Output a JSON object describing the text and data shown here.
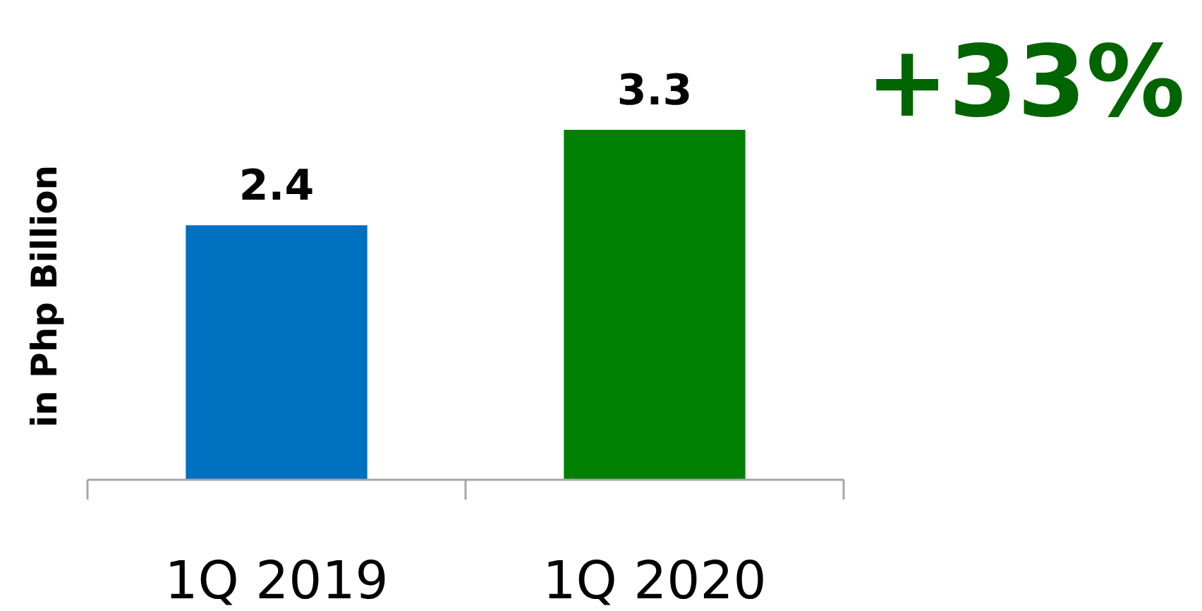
{
  "chart_data": {
    "type": "bar",
    "ylabel": "in Php Billion",
    "categories": [
      "1Q 2019",
      "1Q 2020"
    ],
    "values": [
      2.4,
      3.3
    ],
    "colors": [
      "#0070c0",
      "#008000"
    ],
    "data_labels": true,
    "annotations": [
      "+33%"
    ]
  }
}
